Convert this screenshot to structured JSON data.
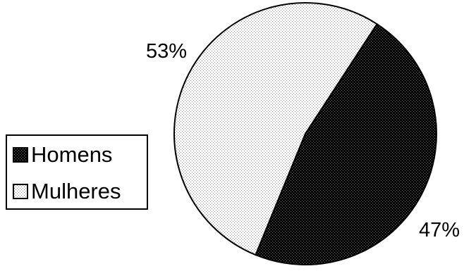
{
  "chart_data": {
    "type": "pie",
    "categories": [
      "Homens",
      "Mulheres"
    ],
    "values": [
      47,
      53
    ],
    "data_labels": [
      "47%",
      "53%"
    ],
    "colors": [
      "#000000",
      "#ffffff"
    ],
    "patterns": [
      "dense-dots-dark",
      "sparse-dots-light"
    ],
    "legend": {
      "placement": "left",
      "entries": [
        "Homens",
        "Mulheres"
      ]
    },
    "title": ""
  }
}
